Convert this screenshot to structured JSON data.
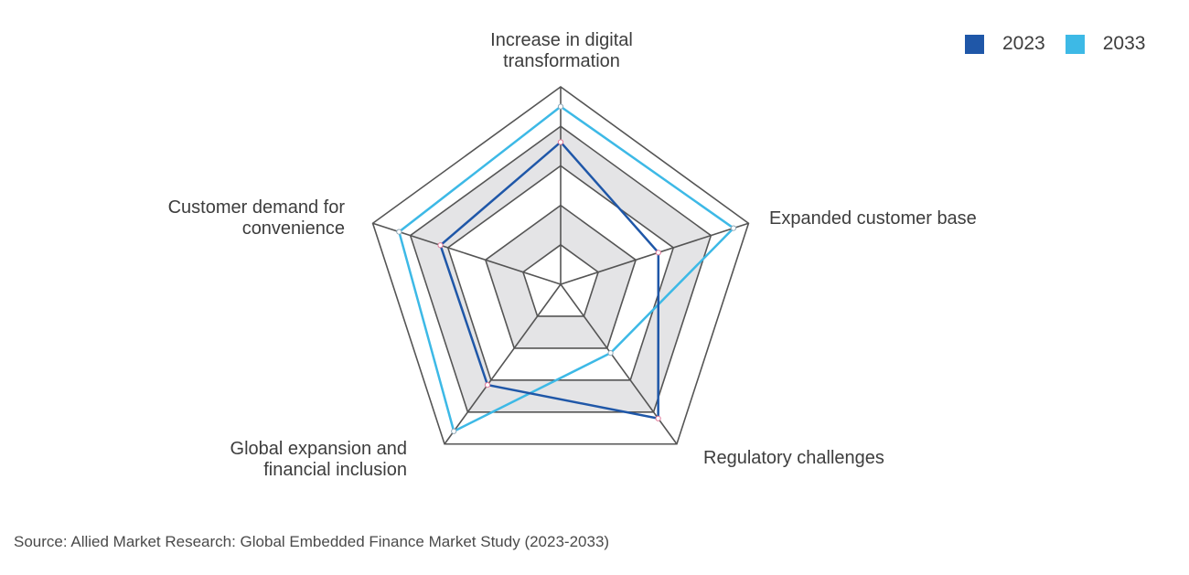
{
  "chart_data": {
    "type": "radar",
    "title": "",
    "axes": [
      "Increase in digital transformation",
      "Expanded customer base",
      "Regulatory challenges",
      "Global expansion and financial inclusion",
      "Customer demand for convenience"
    ],
    "series": [
      {
        "name": "2023",
        "color": "#1f57a8",
        "values": [
          0.72,
          0.52,
          0.84,
          0.63,
          0.64
        ]
      },
      {
        "name": "2033",
        "color": "#3db9e6",
        "values": [
          0.9,
          0.92,
          0.43,
          0.92,
          0.86
        ]
      }
    ],
    "rings": [
      0.2,
      0.4,
      0.6,
      0.8,
      1.0
    ],
    "shaded_bands": [
      [
        0.2,
        0.4
      ],
      [
        0.6,
        0.8
      ]
    ],
    "legend_position": "top-right",
    "source": "Source: Allied Market Research: Global Embedded Finance Market Study (2023-2033)"
  },
  "labels": {
    "axis0_line1": "Increase in digital",
    "axis0_line2": "transformation",
    "axis1": "Expanded customer base",
    "axis2": "Regulatory challenges",
    "axis3_line1": "Global expansion and",
    "axis3_line2": "financial inclusion",
    "axis4_line1": "Customer demand for",
    "axis4_line2": "convenience"
  },
  "legend": {
    "items": [
      {
        "label": "2023",
        "color": "#1f57a8"
      },
      {
        "label": "2033",
        "color": "#3db9e6"
      }
    ]
  },
  "footer": {
    "source": "Source: Allied Market Research: Global Embedded Finance Market Study (2023-2033)"
  }
}
